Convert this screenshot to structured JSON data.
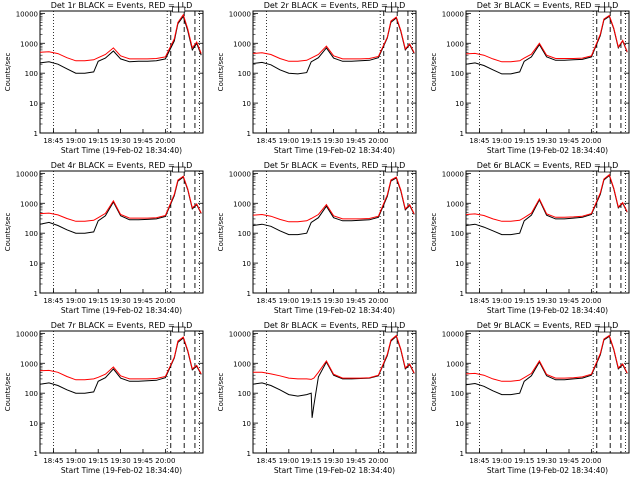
{
  "style": {
    "events_color": "#000000",
    "lld_color": "#ff0000"
  },
  "xlabel": "Start Time (19-Feb-02 18:34:40)",
  "ylabel": "Counts/sec",
  "y_ticks": [
    "1",
    "10",
    "100",
    "1000",
    "10000"
  ],
  "x_ticks": [
    "18:45",
    "19:00",
    "19:15",
    "19:30",
    "19:45",
    "20:00"
  ],
  "chart_data": [
    {
      "type": "line",
      "title": "Det 1r BLACK = Events, RED = LLD",
      "ylog": true,
      "ylim": [
        1,
        12000
      ],
      "xlim": [
        18.6,
        20.42
      ],
      "series": [
        {
          "name": "Events",
          "x": [
            18.6,
            18.7,
            18.8,
            18.9,
            19.0,
            19.1,
            19.2,
            19.25,
            19.33,
            19.42,
            19.5,
            19.6,
            19.7,
            19.8,
            19.9,
            20.0,
            20.1,
            20.14,
            20.2,
            20.25,
            20.3,
            20.35,
            20.4
          ],
          "y": [
            220,
            240,
            200,
            140,
            100,
            100,
            110,
            250,
            320,
            550,
            300,
            240,
            250,
            250,
            260,
            300,
            1200,
            4500,
            8000,
            2600,
            600,
            1000,
            400
          ]
        },
        {
          "name": "LLD",
          "x": [
            18.6,
            18.7,
            18.8,
            18.9,
            19.0,
            19.1,
            19.2,
            19.25,
            19.33,
            19.42,
            19.5,
            19.6,
            19.7,
            19.8,
            19.9,
            20.0,
            20.1,
            20.14,
            20.2,
            20.25,
            20.3,
            20.35,
            20.4
          ],
          "y": [
            500,
            520,
            450,
            330,
            260,
            260,
            280,
            330,
            420,
            700,
            380,
            300,
            300,
            300,
            310,
            350,
            1400,
            5000,
            9000,
            3000,
            700,
            1100,
            450
          ]
        }
      ]
    },
    {
      "type": "line",
      "title": "Det 2r BLACK = Events, RED = LLD",
      "ylog": true,
      "ylim": [
        1,
        12000
      ],
      "xlim": [
        18.6,
        20.42
      ],
      "series": [
        {
          "name": "Events",
          "x": [
            18.6,
            18.7,
            18.8,
            18.9,
            19.0,
            19.1,
            19.2,
            19.25,
            19.33,
            19.42,
            19.5,
            19.6,
            19.7,
            19.8,
            19.9,
            20.0,
            20.1,
            20.14,
            20.2,
            20.25,
            20.3,
            20.35,
            20.4
          ],
          "y": [
            210,
            230,
            190,
            130,
            100,
            95,
            105,
            240,
            330,
            700,
            320,
            250,
            250,
            260,
            270,
            330,
            1500,
            5000,
            7000,
            2500,
            600,
            900,
            450
          ]
        },
        {
          "name": "LLD",
          "x": [
            18.6,
            18.7,
            18.8,
            18.9,
            19.0,
            19.1,
            19.2,
            19.25,
            19.33,
            19.42,
            19.5,
            19.6,
            19.7,
            19.8,
            19.9,
            20.0,
            20.1,
            20.14,
            20.2,
            20.25,
            20.3,
            20.35,
            20.4
          ],
          "y": [
            460,
            480,
            420,
            310,
            250,
            250,
            270,
            320,
            420,
            800,
            380,
            300,
            300,
            300,
            310,
            360,
            1600,
            5500,
            7500,
            2700,
            650,
            950,
            480
          ]
        }
      ]
    },
    {
      "type": "line",
      "title": "Det 3r BLACK = Events, RED = LLD",
      "ylog": true,
      "ylim": [
        1,
        12000
      ],
      "xlim": [
        18.6,
        20.42
      ],
      "series": [
        {
          "name": "Events",
          "x": [
            18.6,
            18.7,
            18.8,
            18.9,
            19.0,
            19.1,
            19.2,
            19.25,
            19.33,
            19.42,
            19.5,
            19.6,
            19.7,
            19.8,
            19.9,
            20.0,
            20.1,
            20.14,
            20.2,
            20.25,
            20.3,
            20.35,
            20.4
          ],
          "y": [
            200,
            220,
            180,
            130,
            95,
            95,
            110,
            250,
            350,
            900,
            350,
            270,
            270,
            280,
            290,
            350,
            1800,
            6000,
            8000,
            3000,
            700,
            1200,
            500
          ]
        },
        {
          "name": "LLD",
          "x": [
            18.6,
            18.7,
            18.8,
            18.9,
            19.0,
            19.1,
            19.2,
            19.25,
            19.33,
            19.42,
            19.5,
            19.6,
            19.7,
            19.8,
            19.9,
            20.0,
            20.1,
            20.14,
            20.2,
            20.25,
            20.3,
            20.35,
            20.4
          ],
          "y": [
            440,
            460,
            400,
            300,
            240,
            240,
            260,
            320,
            430,
            1000,
            400,
            310,
            310,
            310,
            320,
            380,
            2000,
            6500,
            8500,
            3200,
            750,
            1250,
            520
          ]
        }
      ]
    },
    {
      "type": "line",
      "title": "Det 4r BLACK = Events, RED = LLD",
      "ylog": true,
      "ylim": [
        1,
        12000
      ],
      "xlim": [
        18.6,
        20.42
      ],
      "series": [
        {
          "name": "Events",
          "x": [
            18.6,
            18.7,
            18.8,
            18.9,
            19.0,
            19.1,
            19.2,
            19.25,
            19.33,
            19.42,
            19.5,
            19.6,
            19.7,
            19.8,
            19.9,
            20.0,
            20.1,
            20.14,
            20.2,
            20.25,
            20.3,
            20.35,
            20.4
          ],
          "y": [
            200,
            230,
            180,
            130,
            100,
            100,
            110,
            260,
            380,
            1100,
            380,
            280,
            280,
            290,
            300,
            360,
            1800,
            5500,
            7500,
            2800,
            650,
            900,
            450
          ]
        },
        {
          "name": "LLD",
          "x": [
            18.6,
            18.7,
            18.8,
            18.9,
            19.0,
            19.1,
            19.2,
            19.25,
            19.33,
            19.42,
            19.5,
            19.6,
            19.7,
            19.8,
            19.9,
            20.0,
            20.1,
            20.14,
            20.2,
            20.25,
            20.3,
            20.35,
            20.4
          ],
          "y": [
            450,
            470,
            410,
            310,
            250,
            250,
            270,
            330,
            460,
            1200,
            420,
            320,
            320,
            320,
            330,
            390,
            2000,
            6000,
            8000,
            3000,
            700,
            950,
            470
          ]
        }
      ]
    },
    {
      "type": "line",
      "title": "Det 5r BLACK = Events, RED = LLD",
      "ylog": true,
      "ylim": [
        1,
        12000
      ],
      "xlim": [
        18.6,
        20.42
      ],
      "series": [
        {
          "name": "Events",
          "x": [
            18.6,
            18.7,
            18.8,
            18.9,
            19.0,
            19.1,
            19.2,
            19.25,
            19.33,
            19.42,
            19.5,
            19.6,
            19.7,
            19.8,
            19.9,
            20.0,
            20.1,
            20.14,
            20.2,
            20.25,
            20.3,
            20.35,
            20.4
          ],
          "y": [
            180,
            200,
            170,
            120,
            90,
            90,
            100,
            230,
            330,
            800,
            330,
            260,
            260,
            270,
            280,
            340,
            1700,
            5500,
            7000,
            2600,
            600,
            850,
            420
          ]
        },
        {
          "name": "LLD",
          "x": [
            18.6,
            18.7,
            18.8,
            18.9,
            19.0,
            19.1,
            19.2,
            19.25,
            19.33,
            19.42,
            19.5,
            19.6,
            19.7,
            19.8,
            19.9,
            20.0,
            20.1,
            20.14,
            20.2,
            20.25,
            20.3,
            20.35,
            20.4
          ],
          "y": [
            400,
            420,
            370,
            290,
            240,
            240,
            260,
            310,
            420,
            900,
            380,
            300,
            300,
            300,
            310,
            370,
            1900,
            6000,
            7500,
            2800,
            650,
            900,
            440
          ]
        }
      ]
    },
    {
      "type": "line",
      "title": "Det 6r BLACK = Events, RED = LLD",
      "ylog": true,
      "ylim": [
        1,
        12000
      ],
      "xlim": [
        18.6,
        20.42
      ],
      "series": [
        {
          "name": "Events",
          "x": [
            18.6,
            18.7,
            18.8,
            18.9,
            19.0,
            19.1,
            19.2,
            19.25,
            19.33,
            19.42,
            19.5,
            19.6,
            19.7,
            19.8,
            19.9,
            20.0,
            20.1,
            20.14,
            20.2,
            20.25,
            20.3,
            20.35,
            20.4
          ],
          "y": [
            180,
            200,
            160,
            120,
            90,
            90,
            100,
            260,
            400,
            1300,
            400,
            300,
            300,
            320,
            340,
            420,
            2000,
            6000,
            8500,
            3000,
            700,
            1000,
            500
          ]
        },
        {
          "name": "LLD",
          "x": [
            18.6,
            18.7,
            18.8,
            18.9,
            19.0,
            19.1,
            19.2,
            19.25,
            19.33,
            19.42,
            19.5,
            19.6,
            19.7,
            19.8,
            19.9,
            20.0,
            20.1,
            20.14,
            20.2,
            20.25,
            20.3,
            20.35,
            20.4
          ],
          "y": [
            420,
            440,
            390,
            300,
            250,
            250,
            270,
            330,
            470,
            1400,
            440,
            340,
            340,
            350,
            370,
            450,
            2200,
            6500,
            9000,
            3200,
            750,
            1050,
            520
          ]
        }
      ]
    },
    {
      "type": "line",
      "title": "Det 7r BLACK = Events, RED = LLD",
      "ylog": true,
      "ylim": [
        1,
        12000
      ],
      "xlim": [
        18.6,
        20.42
      ],
      "series": [
        {
          "name": "Events",
          "x": [
            18.6,
            18.7,
            18.8,
            18.9,
            19.0,
            19.1,
            19.2,
            19.25,
            19.33,
            19.42,
            19.5,
            19.6,
            19.7,
            19.8,
            19.9,
            20.0,
            20.1,
            20.14,
            20.2,
            20.25,
            20.3,
            20.35,
            20.4
          ],
          "y": [
            200,
            220,
            180,
            130,
            100,
            100,
            110,
            250,
            330,
            650,
            320,
            250,
            250,
            260,
            270,
            330,
            1500,
            5000,
            7000,
            2500,
            600,
            800,
            420
          ]
        },
        {
          "name": "LLD",
          "x": [
            18.6,
            18.7,
            18.8,
            18.9,
            19.0,
            19.1,
            19.2,
            19.25,
            19.33,
            19.42,
            19.5,
            19.6,
            19.7,
            19.8,
            19.9,
            20.0,
            20.1,
            20.14,
            20.2,
            20.25,
            20.3,
            20.35,
            20.4
          ],
          "y": [
            560,
            580,
            500,
            360,
            280,
            280,
            300,
            340,
            430,
            750,
            380,
            300,
            300,
            300,
            310,
            360,
            1600,
            5500,
            7500,
            2700,
            650,
            850,
            440
          ]
        }
      ]
    },
    {
      "type": "line",
      "title": "Det 8r BLACK = Events, RED = LLD",
      "ylog": true,
      "ylim": [
        1,
        12000
      ],
      "xlim": [
        18.6,
        20.42
      ],
      "series": [
        {
          "name": "Events",
          "x": [
            18.6,
            18.7,
            18.8,
            18.9,
            19.0,
            19.1,
            19.2,
            19.25,
            19.26,
            19.28,
            19.33,
            19.42,
            19.5,
            19.6,
            19.7,
            19.8,
            19.9,
            20.0,
            20.1,
            20.14,
            20.2,
            20.25,
            20.3,
            20.35,
            20.4
          ],
          "y": [
            200,
            220,
            180,
            130,
            90,
            80,
            90,
            100,
            15,
            40,
            350,
            1100,
            400,
            300,
            300,
            310,
            320,
            380,
            1800,
            5500,
            8000,
            2800,
            650,
            900,
            450
          ]
        },
        {
          "name": "LLD",
          "x": [
            18.6,
            18.7,
            18.8,
            18.9,
            19.0,
            19.1,
            19.2,
            19.25,
            19.26,
            19.28,
            19.33,
            19.42,
            19.5,
            19.6,
            19.7,
            19.8,
            19.9,
            20.0,
            20.1,
            20.14,
            20.2,
            20.25,
            20.3,
            20.35,
            20.4
          ],
          "y": [
            500,
            500,
            440,
            380,
            320,
            300,
            300,
            290,
            300,
            320,
            500,
            1200,
            430,
            320,
            320,
            320,
            330,
            400,
            2000,
            6000,
            8500,
            3000,
            700,
            950,
            470
          ]
        }
      ]
    },
    {
      "type": "line",
      "title": "Det 9r BLACK = Events, RED = LLD",
      "ylog": true,
      "ylim": [
        1,
        12000
      ],
      "xlim": [
        18.6,
        20.42
      ],
      "series": [
        {
          "name": "Events",
          "x": [
            18.6,
            18.7,
            18.8,
            18.9,
            19.0,
            19.1,
            19.2,
            19.25,
            19.33,
            19.42,
            19.5,
            19.6,
            19.7,
            19.8,
            19.9,
            20.0,
            20.1,
            20.14,
            20.2,
            20.25,
            20.3,
            20.35,
            20.4
          ],
          "y": [
            190,
            210,
            170,
            120,
            90,
            90,
            100,
            250,
            380,
            1100,
            380,
            280,
            280,
            300,
            320,
            400,
            1900,
            6000,
            8000,
            2800,
            650,
            900,
            450
          ]
        },
        {
          "name": "LLD",
          "x": [
            18.6,
            18.7,
            18.8,
            18.9,
            19.0,
            19.1,
            19.2,
            19.25,
            19.33,
            19.42,
            19.5,
            19.6,
            19.7,
            19.8,
            19.9,
            20.0,
            20.1,
            20.14,
            20.2,
            20.25,
            20.3,
            20.35,
            20.4
          ],
          "y": [
            440,
            460,
            400,
            300,
            250,
            250,
            270,
            330,
            460,
            1200,
            420,
            320,
            320,
            330,
            350,
            430,
            2100,
            6500,
            8500,
            3000,
            700,
            950,
            470
          ]
        }
      ]
    }
  ]
}
